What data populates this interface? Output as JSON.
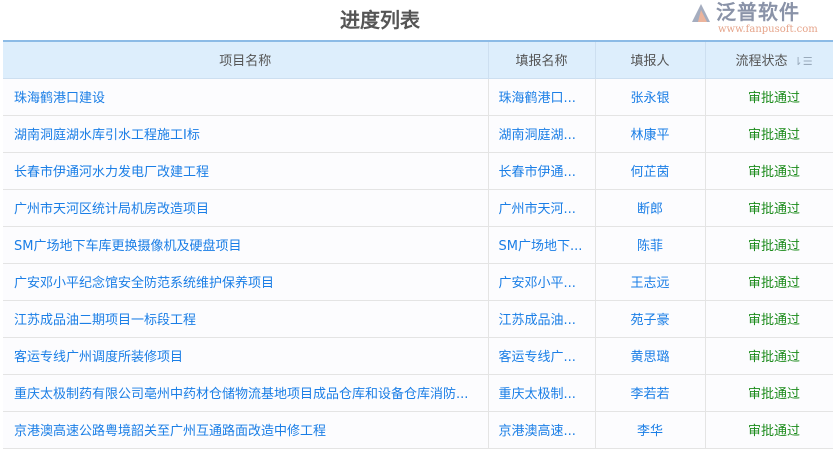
{
  "title": "进度列表",
  "columns": [
    "项目名称",
    "填报名称",
    "填报人",
    "流程状态"
  ],
  "rows": [
    {
      "project": "珠海鹤港口建设",
      "report": "珠海鹤港口...",
      "reporter": "张永银",
      "status": "审批通过"
    },
    {
      "project": "湖南洞庭湖水库引水工程施工I标",
      "report": "湖南洞庭湖...",
      "reporter": "林康平",
      "status": "审批通过"
    },
    {
      "project": "长春市伊通河水力发电厂改建工程",
      "report": "长春市伊通...",
      "reporter": "何芷茵",
      "status": "审批通过"
    },
    {
      "project": "广州市天河区统计局机房改造项目",
      "report": "广州市天河...",
      "reporter": "断郎",
      "status": "审批通过"
    },
    {
      "project": "SM广场地下车库更换摄像机及硬盘项目",
      "report": "SM广场地下...",
      "reporter": "陈菲",
      "status": "审批通过"
    },
    {
      "project": "广安邓小平纪念馆安全防范系统维护保养项目",
      "report": "广安邓小平...",
      "reporter": "王志远",
      "status": "审批通过"
    },
    {
      "project": "江苏成品油二期项目一标段工程",
      "report": "江苏成品油...",
      "reporter": "苑子豪",
      "status": "审批通过"
    },
    {
      "project": "客运专线广州调度所装修项目",
      "report": "客运专线广...",
      "reporter": "黄思璐",
      "status": "审批通过"
    },
    {
      "project": "重庆太极制药有限公司亳州中药材仓储物流基地项目成品仓库和设备仓库消防...",
      "report": "重庆太极制...",
      "reporter": "李若若",
      "status": "审批通过"
    },
    {
      "project": "京港澳高速公路粤境韶关至广州互通路面改造中修工程",
      "report": "京港澳高速...",
      "reporter": "李华",
      "status": "审批通过"
    }
  ],
  "watermark": {
    "text": "泛普软件",
    "url": "www.fanpusoft.com"
  },
  "colors": {
    "link": "#1a7ee6",
    "status": "#1a8a1a",
    "header_bg": "#ddeefc"
  }
}
